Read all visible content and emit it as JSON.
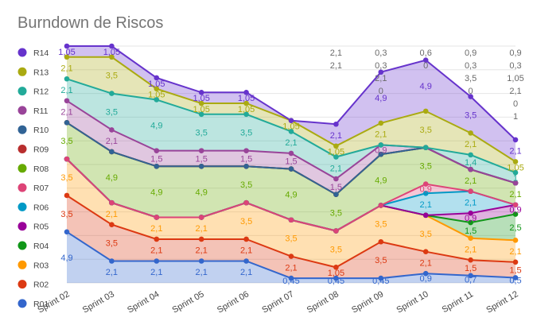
{
  "title": "Burndown de Riscos",
  "chart_data": {
    "type": "area",
    "stacked": true,
    "title": "Burndown de Riscos",
    "categories": [
      "Sprint 02",
      "Sprint 03",
      "Sprint 04",
      "Sprint 05",
      "Sprint 06",
      "Sprint 07",
      "Sprint 08",
      "Sprint 09",
      "Sprint 10",
      "Sprint 11",
      "Sprint 12"
    ],
    "legend": "left",
    "grid": true,
    "series": [
      {
        "name": "R01",
        "color": "#3366cc",
        "values": [
          4.9,
          2.1,
          2.1,
          2.1,
          2.1,
          0.45,
          0.45,
          0.45,
          0.9,
          0.7,
          0.5
        ]
      },
      {
        "name": "R02",
        "color": "#dc3912",
        "values": [
          3.5,
          3.5,
          2.1,
          2.1,
          2.1,
          2.1,
          1.05,
          3.5,
          2.1,
          1.5,
          1.5
        ]
      },
      {
        "name": "R03",
        "color": "#ff9900",
        "values": [
          3.5,
          2.1,
          2.1,
          2.1,
          3.5,
          3.5,
          3.5,
          3.5,
          3.5,
          2.1,
          2.1
        ]
      },
      {
        "name": "R04",
        "color": "#109618",
        "values": [
          0,
          0,
          0,
          0,
          0,
          0,
          0,
          0,
          0,
          1.5,
          2.5
        ]
      },
      {
        "name": "R05",
        "color": "#990099",
        "values": [
          0,
          0,
          0,
          0,
          0,
          0,
          0,
          0,
          0,
          0.9,
          0.9
        ]
      },
      {
        "name": "R06",
        "color": "#0099c6",
        "values": [
          0,
          0,
          0,
          0,
          0,
          0,
          0,
          0,
          2.1,
          2.1,
          0
        ]
      },
      {
        "name": "R07",
        "color": "#dd4477",
        "values": [
          0,
          0,
          0,
          0,
          0,
          0,
          0,
          0,
          0.9,
          0,
          0
        ]
      },
      {
        "name": "R08",
        "color": "#66aa00",
        "values": [
          3.5,
          4.9,
          4.9,
          4.9,
          3.5,
          4.9,
          3.5,
          4.9,
          3.5,
          2.1,
          2.1
        ]
      },
      {
        "name": "R09",
        "color": "#b82e2e",
        "values": [
          0,
          0,
          0,
          0,
          0,
          0,
          0,
          0,
          0,
          0,
          0
        ]
      },
      {
        "name": "R10",
        "color": "#316395",
        "values": [
          0,
          0,
          0,
          0,
          0,
          0,
          0,
          0,
          0,
          0,
          0
        ]
      },
      {
        "name": "R11",
        "color": "#994499",
        "values": [
          2.1,
          2.1,
          1.5,
          1.5,
          1.5,
          1.5,
          1.5,
          0.9,
          0,
          0,
          0
        ]
      },
      {
        "name": "R12",
        "color": "#22aa99",
        "values": [
          2.1,
          3.5,
          4.9,
          3.5,
          3.5,
          2.1,
          2.1,
          0,
          0,
          1.4,
          1
        ]
      },
      {
        "name": "R13",
        "color": "#aaaa11",
        "values": [
          2.1,
          3.5,
          1.05,
          1.05,
          1.05,
          1.05,
          1.05,
          2.1,
          3.5,
          2.1,
          1.05
        ]
      },
      {
        "name": "R14",
        "color": "#6633cc",
        "values": [
          1.05,
          1.05,
          1.05,
          1.05,
          1.05,
          0,
          2.1,
          4.9,
          4.9,
          3.5,
          2.1
        ]
      }
    ],
    "extra_labels": [
      {
        "category": "Sprint 09",
        "text": "0,3"
      },
      {
        "category": "Sprint 09",
        "text": "0,3"
      },
      {
        "category": "Sprint 10",
        "text": "0,6"
      },
      {
        "category": "Sprint 11",
        "text": "0,9"
      },
      {
        "category": "Sprint 11",
        "text": "0,3"
      },
      {
        "category": "Sprint 11",
        "text": "3,5"
      },
      {
        "category": "Sprint 12",
        "text": "0,9"
      },
      {
        "category": "Sprint 12",
        "text": "0,3"
      },
      {
        "category": "Sprint 12",
        "text": "1,05"
      },
      {
        "category": "Sprint 12",
        "text": "2,1"
      },
      {
        "category": "Sprint 12",
        "text": "0"
      },
      {
        "category": "Sprint 12",
        "text": "1"
      },
      {
        "category": "Sprint 09",
        "text": "2,1"
      },
      {
        "category": "Sprint 09",
        "text": "0"
      },
      {
        "category": "Sprint 10",
        "text": "0"
      },
      {
        "category": "Sprint 11",
        "text": "0"
      },
      {
        "category": "Sprint 08",
        "text": "2,1"
      },
      {
        "category": "Sprint 08",
        "text": "2,1"
      }
    ]
  }
}
